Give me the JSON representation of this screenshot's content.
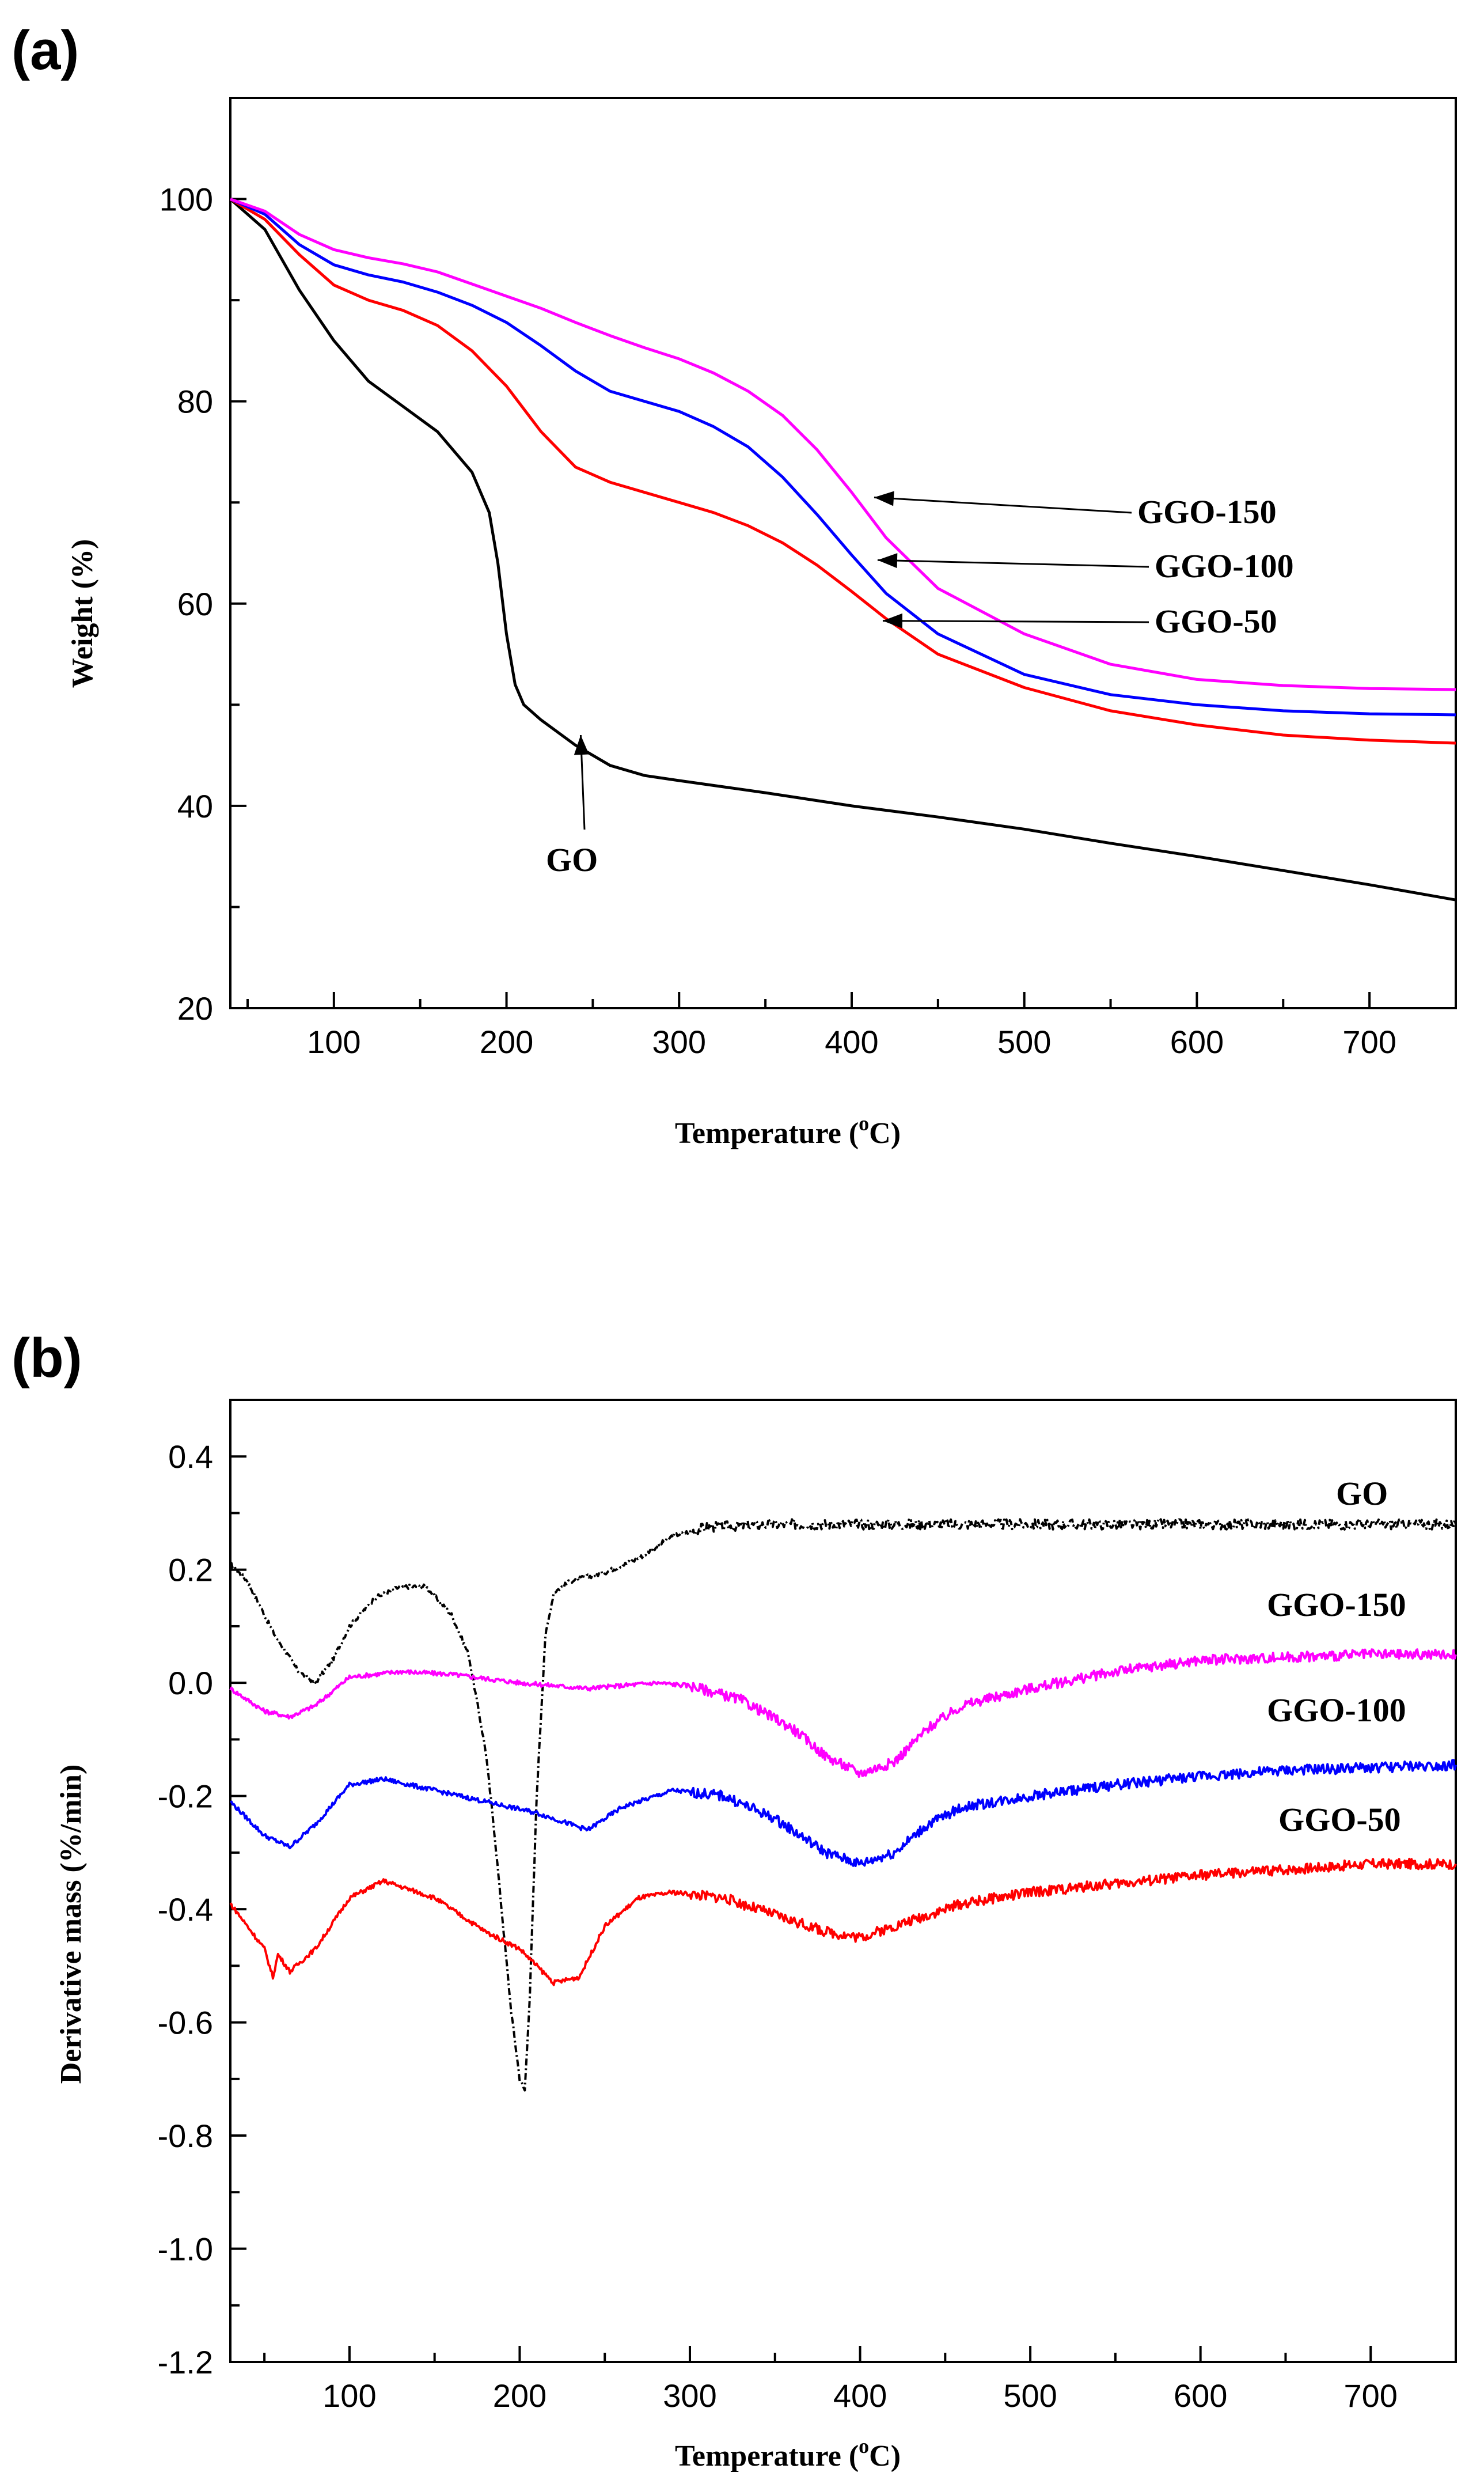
{
  "chart_data": [
    {
      "type": "line",
      "panel_label": "(a)",
      "xlabel": "Temperature (°C)",
      "xlabel_parts": {
        "before": "Temperature (",
        "sup": "o",
        "after": "C)"
      },
      "ylabel": "Weight (%)",
      "xlim": [
        40,
        750
      ],
      "ylim": [
        20,
        110
      ],
      "xticks": [
        100,
        200,
        300,
        400,
        500,
        600,
        700
      ],
      "yticks": [
        20,
        40,
        60,
        80,
        100
      ],
      "series": [
        {
          "name": "GO",
          "color": "#000000",
          "dash": "",
          "x": [
            40,
            60,
            80,
            100,
            120,
            140,
            160,
            180,
            190,
            195,
            200,
            205,
            210,
            220,
            240,
            260,
            280,
            300,
            350,
            400,
            450,
            500,
            550,
            600,
            650,
            700,
            750
          ],
          "y": [
            100,
            97,
            91,
            86,
            82,
            79.5,
            77,
            73,
            69,
            64,
            57,
            52,
            50,
            48.5,
            46,
            44,
            43,
            42.5,
            41.3,
            40,
            38.9,
            37.7,
            36.3,
            35,
            33.6,
            32.2,
            30.7
          ]
        },
        {
          "name": "GGO-50",
          "color": "#ff0000",
          "dash": "",
          "x": [
            40,
            60,
            80,
            100,
            120,
            140,
            160,
            180,
            200,
            220,
            240,
            260,
            280,
            300,
            320,
            340,
            360,
            380,
            400,
            420,
            450,
            500,
            550,
            600,
            650,
            700,
            750
          ],
          "y": [
            100,
            98,
            94.5,
            91.5,
            90,
            89,
            87.5,
            85,
            81.5,
            77,
            73.5,
            72,
            71,
            70,
            69,
            67.7,
            66,
            63.8,
            61.2,
            58.5,
            55,
            51.7,
            49.4,
            48,
            47,
            46.5,
            46.2
          ]
        },
        {
          "name": "GGO-100",
          "color": "#0000ff",
          "dash": "",
          "x": [
            40,
            60,
            80,
            100,
            120,
            140,
            160,
            180,
            200,
            220,
            240,
            260,
            280,
            300,
            320,
            340,
            360,
            380,
            400,
            420,
            450,
            500,
            550,
            600,
            650,
            700,
            750
          ],
          "y": [
            100,
            98.5,
            95.5,
            93.5,
            92.5,
            91.8,
            90.8,
            89.5,
            87.8,
            85.5,
            83,
            81,
            80,
            79,
            77.5,
            75.5,
            72.5,
            68.8,
            64.8,
            61,
            57,
            53,
            51,
            50,
            49.4,
            49.1,
            49
          ]
        },
        {
          "name": "GGO-150",
          "color": "#ff00ff",
          "dash": "",
          "x": [
            40,
            60,
            80,
            100,
            120,
            140,
            160,
            180,
            200,
            220,
            240,
            260,
            280,
            300,
            320,
            340,
            360,
            380,
            400,
            420,
            450,
            500,
            550,
            600,
            650,
            700,
            750
          ],
          "y": [
            100,
            98.8,
            96.5,
            95,
            94.2,
            93.6,
            92.8,
            91.6,
            90.4,
            89.2,
            87.8,
            86.5,
            85.3,
            84.2,
            82.8,
            81,
            78.6,
            75.2,
            71,
            66.5,
            61.5,
            57,
            54,
            52.5,
            51.9,
            51.6,
            51.5
          ]
        }
      ],
      "annotations": [
        {
          "label": "GGO-150",
          "arrow_to": [
            413,
            70.5
          ]
        },
        {
          "label": "GGO-100",
          "arrow_to": [
            415,
            64.3
          ]
        },
        {
          "label": "GGO-50",
          "arrow_to": [
            418,
            58.3
          ]
        },
        {
          "label": "GO",
          "arrow_to": [
            243,
            47
          ]
        }
      ]
    },
    {
      "type": "line",
      "panel_label": "(b)",
      "xlabel": "Temperature (°C)",
      "xlabel_parts": {
        "before": "Temperature (",
        "sup": "o",
        "after": "C)"
      },
      "ylabel": "Derivative mass (%/min)",
      "xlim": [
        30,
        750
      ],
      "ylim": [
        -1.2,
        0.5
      ],
      "xticks": [
        100,
        200,
        300,
        400,
        500,
        600,
        700
      ],
      "yticks": [
        -1.2,
        -1.0,
        -0.8,
        -0.6,
        -0.4,
        -0.2,
        0.0,
        0.2,
        0.4
      ],
      "ytick_labels": [
        "-1.2",
        "-1.0",
        "-0.8",
        "-0.6",
        "-0.4",
        "-0.2",
        "0.0",
        "0.2",
        "0.4"
      ],
      "series": [
        {
          "name": "GO",
          "color": "#000000",
          "dash": "12,5,3,5",
          "x": [
            30,
            40,
            55,
            70,
            80,
            90,
            100,
            115,
            130,
            145,
            160,
            170,
            180,
            185,
            190,
            195,
            200,
            203,
            206,
            210,
            215,
            220,
            230,
            250,
            270,
            290,
            310,
            350,
            400,
            450,
            500,
            550,
            600,
            650,
            700,
            750
          ],
          "y": [
            0.21,
            0.18,
            0.09,
            0.02,
            0.0,
            0.04,
            0.1,
            0.15,
            0.17,
            0.17,
            0.12,
            0.05,
            -0.12,
            -0.26,
            -0.42,
            -0.58,
            -0.7,
            -0.72,
            -0.55,
            -0.2,
            0.08,
            0.16,
            0.18,
            0.195,
            0.22,
            0.26,
            0.275,
            0.28,
            0.28,
            0.28,
            0.28,
            0.28,
            0.28,
            0.28,
            0.28,
            0.28
          ]
        },
        {
          "name": "GGO-150",
          "color": "#ff00ff",
          "dash": "",
          "x": [
            30,
            50,
            65,
            80,
            100,
            130,
            160,
            200,
            240,
            280,
            300,
            330,
            360,
            380,
            400,
            420,
            440,
            460,
            500,
            550,
            600,
            650,
            700,
            750
          ],
          "y": [
            -0.01,
            -0.05,
            -0.06,
            -0.04,
            0.01,
            0.02,
            0.015,
            0.0,
            -0.01,
            0.0,
            -0.005,
            -0.03,
            -0.08,
            -0.13,
            -0.16,
            -0.14,
            -0.08,
            -0.04,
            -0.01,
            0.02,
            0.04,
            0.045,
            0.05,
            0.05
          ]
        },
        {
          "name": "GGO-100",
          "color": "#0000ff",
          "dash": "",
          "x": [
            30,
            50,
            65,
            80,
            100,
            120,
            150,
            180,
            210,
            240,
            260,
            290,
            320,
            350,
            380,
            400,
            420,
            440,
            460,
            500,
            550,
            600,
            650,
            700,
            750
          ],
          "y": [
            -0.21,
            -0.27,
            -0.29,
            -0.25,
            -0.18,
            -0.17,
            -0.19,
            -0.21,
            -0.23,
            -0.26,
            -0.22,
            -0.19,
            -0.2,
            -0.24,
            -0.3,
            -0.32,
            -0.3,
            -0.25,
            -0.22,
            -0.2,
            -0.18,
            -0.165,
            -0.155,
            -0.15,
            -0.145
          ]
        },
        {
          "name": "GGO-50",
          "color": "#ff0000",
          "dash": "",
          "x": [
            30,
            50,
            55,
            58,
            65,
            80,
            100,
            120,
            150,
            180,
            200,
            210,
            220,
            235,
            250,
            270,
            290,
            320,
            350,
            380,
            400,
            420,
            460,
            500,
            550,
            600,
            650,
            700,
            750
          ],
          "y": [
            -0.39,
            -0.47,
            -0.52,
            -0.48,
            -0.51,
            -0.47,
            -0.38,
            -0.35,
            -0.38,
            -0.44,
            -0.47,
            -0.5,
            -0.53,
            -0.52,
            -0.43,
            -0.38,
            -0.37,
            -0.38,
            -0.41,
            -0.44,
            -0.45,
            -0.43,
            -0.39,
            -0.37,
            -0.355,
            -0.34,
            -0.33,
            -0.32,
            -0.32
          ]
        }
      ],
      "annotations": [
        {
          "label": "GO"
        },
        {
          "label": "GGO-150"
        },
        {
          "label": "GGO-100"
        },
        {
          "label": "GGO-50"
        }
      ]
    }
  ]
}
